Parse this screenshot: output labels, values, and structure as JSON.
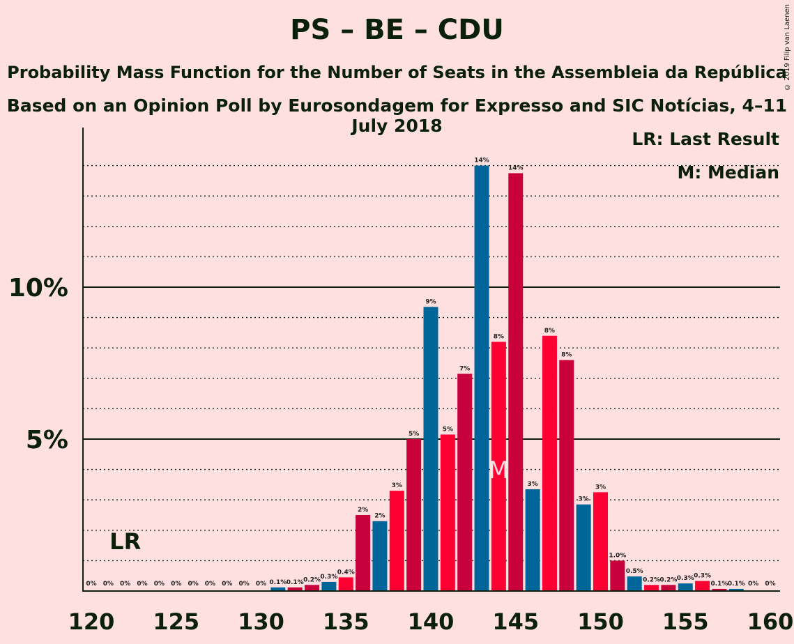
{
  "title": "PS – BE – CDU",
  "subtitle1": "Probability Mass Function for the Number of Seats in the Assembleia da República",
  "subtitle2": "Based on an Opinion Poll by Eurosondagem for Expresso and SIC Notícias, 4–11 July 2018",
  "copyright": "© 2019 Filip van Laenen",
  "legend": {
    "last_result": "LR: Last Result",
    "median": "M: Median"
  },
  "markers": {
    "lr_label": "LR",
    "lr_seat": 122,
    "median_label": "M",
    "median_seat": 144
  },
  "colors": {
    "background": "#ffe0e0",
    "blue": "#006699",
    "crimson": "#c8003c",
    "red": "#ff0033",
    "axis": "#0a200a"
  },
  "chart_data": {
    "type": "bar",
    "xlim": [
      120,
      160
    ],
    "ylim": [
      0,
      15
    ],
    "y_ticks": [
      {
        "value": 5,
        "label": "5%"
      },
      {
        "value": 10,
        "label": "10%"
      }
    ],
    "x_ticks": [
      120,
      125,
      130,
      135,
      140,
      145,
      150,
      155,
      160
    ],
    "bars": [
      {
        "seat": 120,
        "value": 0,
        "label": "0%"
      },
      {
        "seat": 121,
        "value": 0,
        "label": "0%"
      },
      {
        "seat": 122,
        "value": 0,
        "label": "0%"
      },
      {
        "seat": 123,
        "value": 0,
        "label": "0%"
      },
      {
        "seat": 124,
        "value": 0,
        "label": "0%"
      },
      {
        "seat": 125,
        "value": 0,
        "label": "0%"
      },
      {
        "seat": 126,
        "value": 0,
        "label": "0%"
      },
      {
        "seat": 127,
        "value": 0,
        "label": "0%"
      },
      {
        "seat": 128,
        "value": 0,
        "label": "0%"
      },
      {
        "seat": 129,
        "value": 0,
        "label": "0%"
      },
      {
        "seat": 130,
        "value": 0,
        "label": "0%"
      },
      {
        "seat": 131,
        "value": 0.12,
        "label": "0.1%",
        "color": "blue"
      },
      {
        "seat": 132,
        "value": 0.12,
        "label": "0.1%",
        "color": "crimson"
      },
      {
        "seat": 133,
        "value": 0.2,
        "label": "0.2%",
        "color": "crimson"
      },
      {
        "seat": 134,
        "value": 0.3,
        "label": "0.3%",
        "color": "blue"
      },
      {
        "seat": 135,
        "value": 0.45,
        "label": "0.4%",
        "color": "red"
      },
      {
        "seat": 136,
        "value": 2.5,
        "label": "2%",
        "color": "crimson"
      },
      {
        "seat": 137,
        "value": 2.3,
        "label": "2%",
        "color": "blue"
      },
      {
        "seat": 138,
        "value": 3.3,
        "label": "3%",
        "color": "red"
      },
      {
        "seat": 139,
        "value": 5.0,
        "label": "5%",
        "color": "crimson"
      },
      {
        "seat": 140,
        "value": 9.35,
        "label": "9%",
        "color": "blue"
      },
      {
        "seat": 141,
        "value": 5.15,
        "label": "5%",
        "color": "red"
      },
      {
        "seat": 142,
        "value": 7.15,
        "label": "7%",
        "color": "crimson"
      },
      {
        "seat": 143,
        "value": 14.0,
        "label": "14%",
        "color": "blue"
      },
      {
        "seat": 144,
        "value": 8.2,
        "label": "8%",
        "color": "red"
      },
      {
        "seat": 145,
        "value": 13.75,
        "label": "14%",
        "color": "crimson"
      },
      {
        "seat": 146,
        "value": 3.35,
        "label": "3%",
        "color": "blue"
      },
      {
        "seat": 147,
        "value": 8.4,
        "label": "8%",
        "color": "red"
      },
      {
        "seat": 148,
        "value": 7.6,
        "label": "8%",
        "color": "crimson"
      },
      {
        "seat": 149,
        "value": 2.85,
        "label": "3%",
        "color": "blue"
      },
      {
        "seat": 150,
        "value": 3.25,
        "label": "3%",
        "color": "red"
      },
      {
        "seat": 151,
        "value": 1.0,
        "label": "1.0%",
        "color": "crimson"
      },
      {
        "seat": 152,
        "value": 0.48,
        "label": "0.5%",
        "color": "blue"
      },
      {
        "seat": 153,
        "value": 0.2,
        "label": "0.2%",
        "color": "red"
      },
      {
        "seat": 154,
        "value": 0.2,
        "label": "0.2%",
        "color": "crimson"
      },
      {
        "seat": 155,
        "value": 0.25,
        "label": "0.3%",
        "color": "blue"
      },
      {
        "seat": 156,
        "value": 0.33,
        "label": "0.3%",
        "color": "red"
      },
      {
        "seat": 157,
        "value": 0.07,
        "label": "0.1%",
        "color": "crimson"
      },
      {
        "seat": 158,
        "value": 0.07,
        "label": "0.1%",
        "color": "blue"
      },
      {
        "seat": 159,
        "value": 0,
        "label": "0%"
      },
      {
        "seat": 160,
        "value": 0,
        "label": "0%"
      }
    ]
  }
}
